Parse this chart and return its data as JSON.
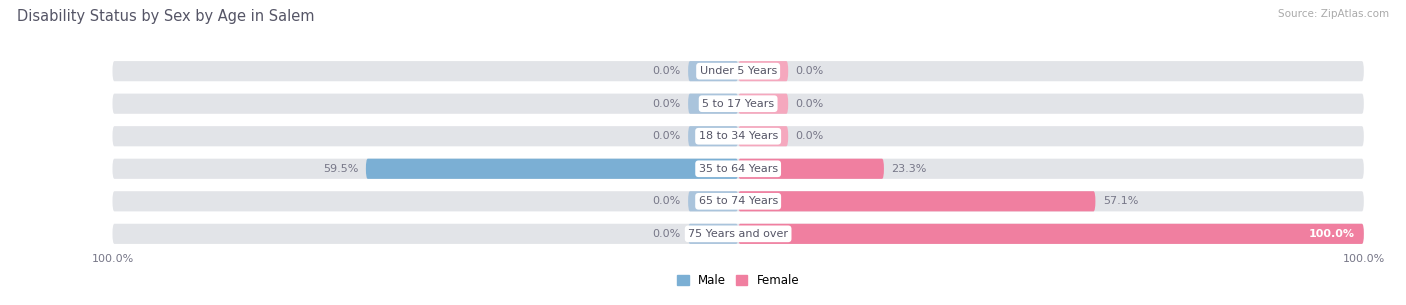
{
  "title": "Disability Status by Sex by Age in Salem",
  "source": "Source: ZipAtlas.com",
  "categories": [
    "Under 5 Years",
    "5 to 17 Years",
    "18 to 34 Years",
    "35 to 64 Years",
    "65 to 74 Years",
    "75 Years and over"
  ],
  "male_values": [
    0.0,
    0.0,
    0.0,
    59.5,
    0.0,
    0.0
  ],
  "female_values": [
    0.0,
    0.0,
    0.0,
    23.3,
    57.1,
    100.0
  ],
  "male_color": "#7bafd4",
  "female_color": "#f07fa0",
  "bar_bg_color": "#e2e4e8",
  "placeholder_male_color": "#aac4dc",
  "placeholder_female_color": "#f5a8be",
  "xlim": 100.0,
  "figsize": [
    14.06,
    3.05
  ],
  "dpi": 100,
  "bg_color": "#ffffff",
  "title_color": "#555566",
  "source_color": "#aaaaaa",
  "label_color": "#555566",
  "value_color": "#777788"
}
